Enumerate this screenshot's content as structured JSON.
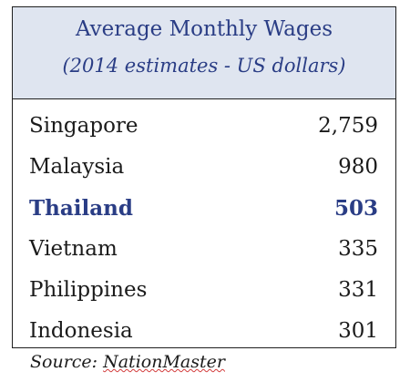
{
  "table": {
    "title": "Average Monthly Wages",
    "subtitle": "(2014 estimates - US dollars)",
    "rows": [
      {
        "country": "Singapore",
        "value": "2,759"
      },
      {
        "country": "Malaysia",
        "value": "980"
      },
      {
        "country": "Thailand",
        "value": "503",
        "highlight": true
      },
      {
        "country": "Vietnam",
        "value": "335"
      },
      {
        "country": "Philippines",
        "value": "331"
      },
      {
        "country": "Indonesia",
        "value": "301"
      }
    ]
  },
  "source": {
    "prefix": "Source: ",
    "name": "NationMaster"
  },
  "colors": {
    "header_bg": "#dfe5f0",
    "accent": "#2a3d85",
    "text": "#1b1b1b"
  }
}
